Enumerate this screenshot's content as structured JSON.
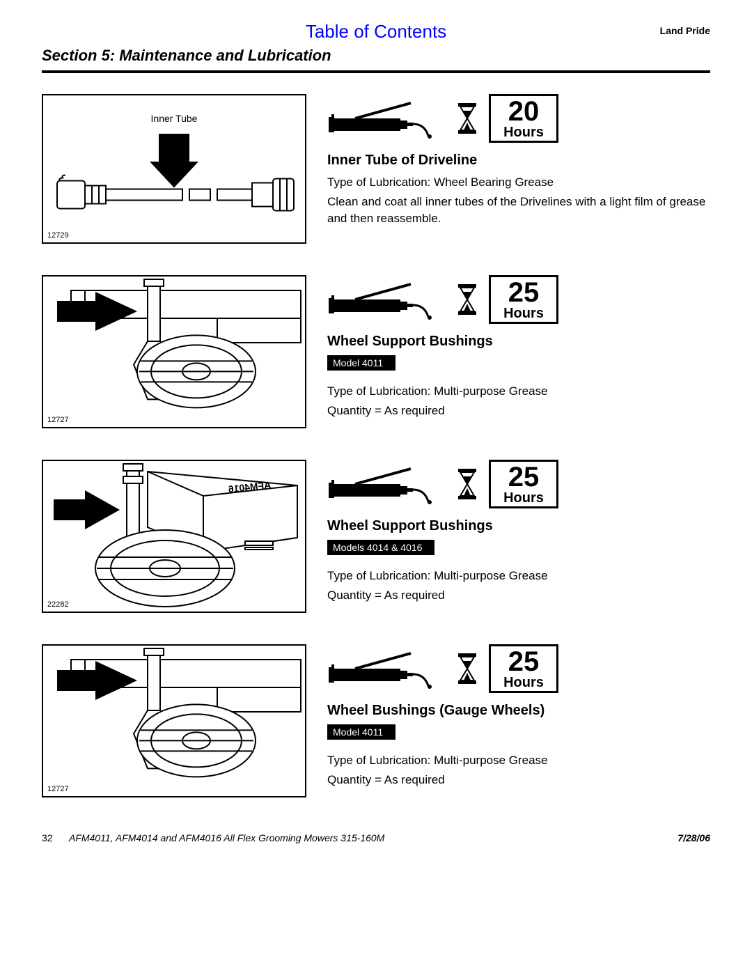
{
  "header": {
    "toc": "Table of Contents",
    "brand": "Land Pride",
    "section": "Section 5:  Maintenance and Lubrication"
  },
  "entries": [
    {
      "fig_id": "12729",
      "fig_label": "Inner Tube",
      "fig_type": "driveline",
      "hours": "20",
      "hours_label": "Hours",
      "title": "Inner Tube of Driveline",
      "model": null,
      "lines": [
        "Type of Lubrication: Wheel Bearing Grease",
        "Clean and coat all inner tubes of the Drivelines with a light film of grease and then reassemble."
      ]
    },
    {
      "fig_id": "12727",
      "fig_label": null,
      "fig_type": "wheel-a",
      "hours": "25",
      "hours_label": "Hours",
      "title": "Wheel Support Bushings",
      "model": "Model 4011",
      "lines": [
        "Type of Lubrication: Multi-purpose Grease",
        "Quantity = As required"
      ]
    },
    {
      "fig_id": "22282",
      "fig_label": null,
      "fig_type": "wheel-b",
      "hours": "25",
      "hours_label": "Hours",
      "title": "Wheel Support Bushings",
      "model": "Models 4014 & 4016",
      "lines": [
        "Type of Lubrication: Multi-purpose Grease",
        "Quantity = As required"
      ]
    },
    {
      "fig_id": "12727",
      "fig_label": null,
      "fig_type": "wheel-a",
      "hours": "25",
      "hours_label": "Hours",
      "title": "Wheel Bushings (Gauge Wheels)",
      "model": "Model 4011",
      "lines": [
        "Type of Lubrication: Multi-purpose Grease",
        "Quantity = As required"
      ]
    }
  ],
  "footer": {
    "page": "32",
    "doc": "AFM4011, AFM4014 and AFM4016 All Flex Grooming Mowers   315-160M",
    "date": "7/28/06"
  }
}
